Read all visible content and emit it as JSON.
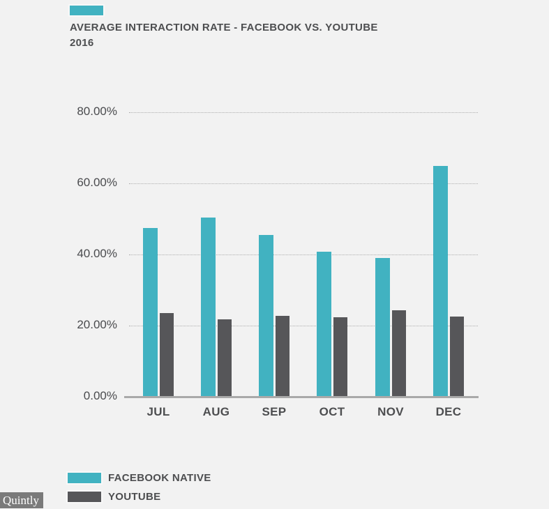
{
  "page": {
    "background_color": "#f2f2f2"
  },
  "header": {
    "accent_swatch_color": "#41b2c1",
    "title": "AVERAGE INTERACTION RATE - FACEBOOK VS. YOUTUBE",
    "subtitle": "2016"
  },
  "chart_data": {
    "type": "bar",
    "title": "AVERAGE INTERACTION RATE - FACEBOOK VS. YOUTUBE 2016",
    "categories": [
      "JUL",
      "AUG",
      "SEP",
      "OCT",
      "NOV",
      "DEC"
    ],
    "series": [
      {
        "name": "FACEBOOK NATIVE",
        "color": "#41b2c1",
        "values": [
          47.5,
          50.4,
          45.5,
          40.8,
          39.0,
          65.0
        ]
      },
      {
        "name": "YOUTUBE",
        "color": "#565659",
        "values": [
          23.5,
          21.8,
          22.8,
          22.4,
          24.4,
          22.5
        ]
      }
    ],
    "xlabel": "",
    "ylabel": "",
    "ylim": [
      0,
      80
    ],
    "y_ticks": [
      {
        "value": 80,
        "label": "80.00%"
      },
      {
        "value": 60,
        "label": "60.00%"
      },
      {
        "value": 40,
        "label": "40.00%"
      },
      {
        "value": 20,
        "label": "20.00%"
      },
      {
        "value": 0,
        "label": "0.00%"
      }
    ],
    "grid": "horizontal-dotted",
    "legend_position": "bottom-left"
  },
  "legend": {
    "items": [
      {
        "label": "FACEBOOK NATIVE",
        "color": "#41b2c1"
      },
      {
        "label": "YOUTUBE",
        "color": "#565659"
      }
    ]
  },
  "watermark": {
    "text": "Quintly"
  }
}
